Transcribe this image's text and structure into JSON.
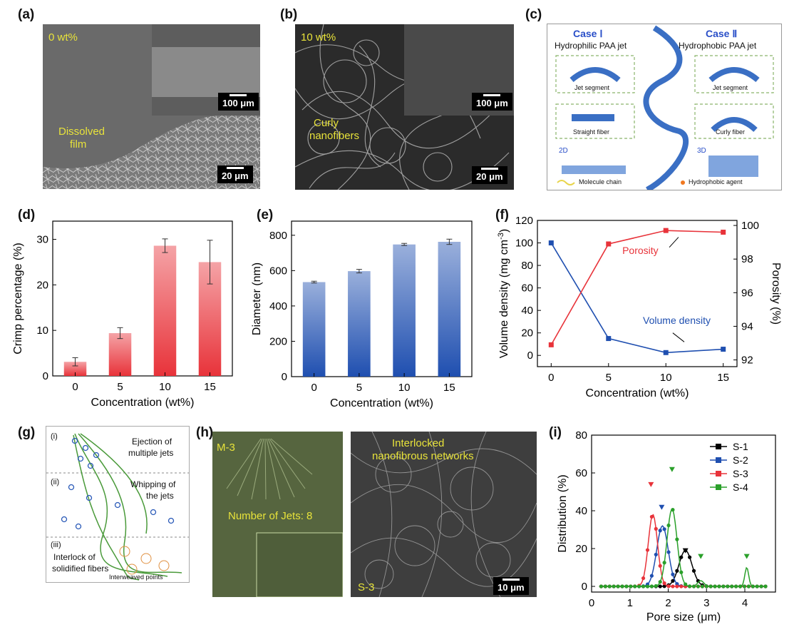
{
  "labels": {
    "a": "(a)",
    "b": "(b)",
    "c": "(c)",
    "d": "(d)",
    "e": "(e)",
    "f": "(f)",
    "g": "(g)",
    "h": "(h)",
    "i": "(i)"
  },
  "panel_a": {
    "concentration": "0 wt%",
    "film_label_1": "Dissolved",
    "film_label_2": "film",
    "scale_main": "20 μm",
    "scale_inset": "100 μm"
  },
  "panel_b": {
    "concentration": "10 wt%",
    "fiber_label_1": "Curly",
    "fiber_label_2": "nanofibers",
    "scale_main": "20 μm",
    "scale_inset": "100 μm"
  },
  "panel_c": {
    "case1_title": "Case Ⅰ",
    "case1_sub": "Hydrophilic PAA jet",
    "case2_title": "Case Ⅱ",
    "case2_sub": "Hydrophobic PAA jet",
    "jet_segment": "Jet segment",
    "straight_fiber": "Straight fiber",
    "curly_fiber": "Curly fiber",
    "dim2": "2D",
    "dim3": "3D",
    "legend_chain": "Molecule chain",
    "legend_agent": "Hydrophobic agent"
  },
  "panel_g": {
    "step1": "(i)",
    "step1_text_1": "Ejection of",
    "step1_text_2": "multiple jets",
    "step2": "(ii)",
    "step2_text_1": "Whipping of",
    "step2_text_2": "the jets",
    "step3": "(iii)",
    "step3_text_1": "Interlock of",
    "step3_text_2": "solidified fibers",
    "points": "Interweaved points"
  },
  "panel_h": {
    "sample_left": "M-3",
    "jets": "Number of Jets: 8",
    "net_1": "Interlocked",
    "net_2": "nanofibrous networks",
    "sample_right": "S-3",
    "scale": "10 μm"
  },
  "colors": {
    "red": "#e8333a",
    "blue": "#1f4fb0",
    "green": "#2aa02a",
    "black": "#000000",
    "yellow": "#e8e33a"
  },
  "chart_data": [
    {
      "id": "d",
      "type": "bar",
      "categories": [
        "0",
        "5",
        "10",
        "15"
      ],
      "values": [
        3.1,
        9.4,
        28.6,
        25.0
      ],
      "errors": [
        0.9,
        1.2,
        1.5,
        4.8
      ],
      "xlabel": "Concentration (wt%)",
      "ylabel": "Crimp percentage (%)",
      "ylim": [
        0,
        34
      ],
      "yticks": [
        "0",
        "10",
        "20",
        "30"
      ],
      "color": "#e8333a"
    },
    {
      "id": "e",
      "type": "bar",
      "categories": [
        "0",
        "5",
        "10",
        "15"
      ],
      "values": [
        535,
        597,
        748,
        763
      ],
      "errors": [
        5,
        10,
        6,
        15
      ],
      "xlabel": "Concentration (wt%)",
      "ylabel": "Diameter (nm)",
      "ylim": [
        0,
        880
      ],
      "yticks": [
        "0",
        "200",
        "400",
        "600",
        "800"
      ],
      "color": "#1f4fb0"
    },
    {
      "id": "f",
      "type": "line",
      "x": [
        0,
        5,
        10,
        15
      ],
      "series": [
        {
          "name": "Volume density",
          "axis": "left",
          "values": [
            100,
            15,
            2.5,
            5.5
          ],
          "color": "#1f4fb0"
        },
        {
          "name": "Porosity",
          "axis": "right",
          "values": [
            92.9,
            98.9,
            99.7,
            99.6
          ],
          "color": "#e8333a"
        }
      ],
      "xlabel": "Concentration (wt%)",
      "ylabel_left": "Volume density (mg cm",
      "ylabel_left_sup": "-3",
      "ylabel_left_end": ")",
      "ylabel_right": "Porosity (%)",
      "xticks": [
        "0",
        "5",
        "10",
        "15"
      ],
      "ylim_left": [
        -10,
        120
      ],
      "yticks_left": [
        "0",
        "20",
        "40",
        "60",
        "80",
        "100",
        "120"
      ],
      "ylim_right": [
        91.6,
        100.3
      ],
      "yticks_right": [
        "92",
        "94",
        "96",
        "98",
        "100"
      ],
      "annotations": [
        "Porosity",
        "Volume density"
      ]
    },
    {
      "id": "i",
      "type": "line",
      "xlabel": "Pore size (μm)",
      "ylabel": "Distribution (%)",
      "xlim": [
        0,
        4.8
      ],
      "xticks": [
        "0",
        "1",
        "2",
        "3",
        "4"
      ],
      "ylim": [
        -3,
        80
      ],
      "yticks": [
        "0",
        "20",
        "40",
        "60",
        "80"
      ],
      "legend": "top-right",
      "series": [
        {
          "name": "S-1",
          "color": "#000000",
          "peak_x": 2.45,
          "peak_y": 19,
          "width": 0.17
        },
        {
          "name": "S-2",
          "color": "#1f4fb0",
          "peak_x": 1.85,
          "peak_y": 32,
          "width": 0.15
        },
        {
          "name": "S-3",
          "color": "#e8333a",
          "peak_x": 1.6,
          "peak_y": 38,
          "width": 0.12
        },
        {
          "name": "S-4",
          "color": "#2aa02a",
          "peak_x": 2.1,
          "peak_y": 41,
          "width": 0.13
        }
      ],
      "markers": [
        {
          "series": "S-3",
          "x": 1.55,
          "y": 54
        },
        {
          "series": "S-2",
          "x": 1.83,
          "y": 42
        },
        {
          "series": "S-4",
          "x": 2.1,
          "y": 62
        },
        {
          "series": "S-4",
          "x": 2.85,
          "y": 16
        },
        {
          "series": "S-4",
          "x": 4.05,
          "y": 16
        },
        {
          "series": "S-1",
          "x": 2.45,
          "y": 19
        }
      ]
    }
  ]
}
